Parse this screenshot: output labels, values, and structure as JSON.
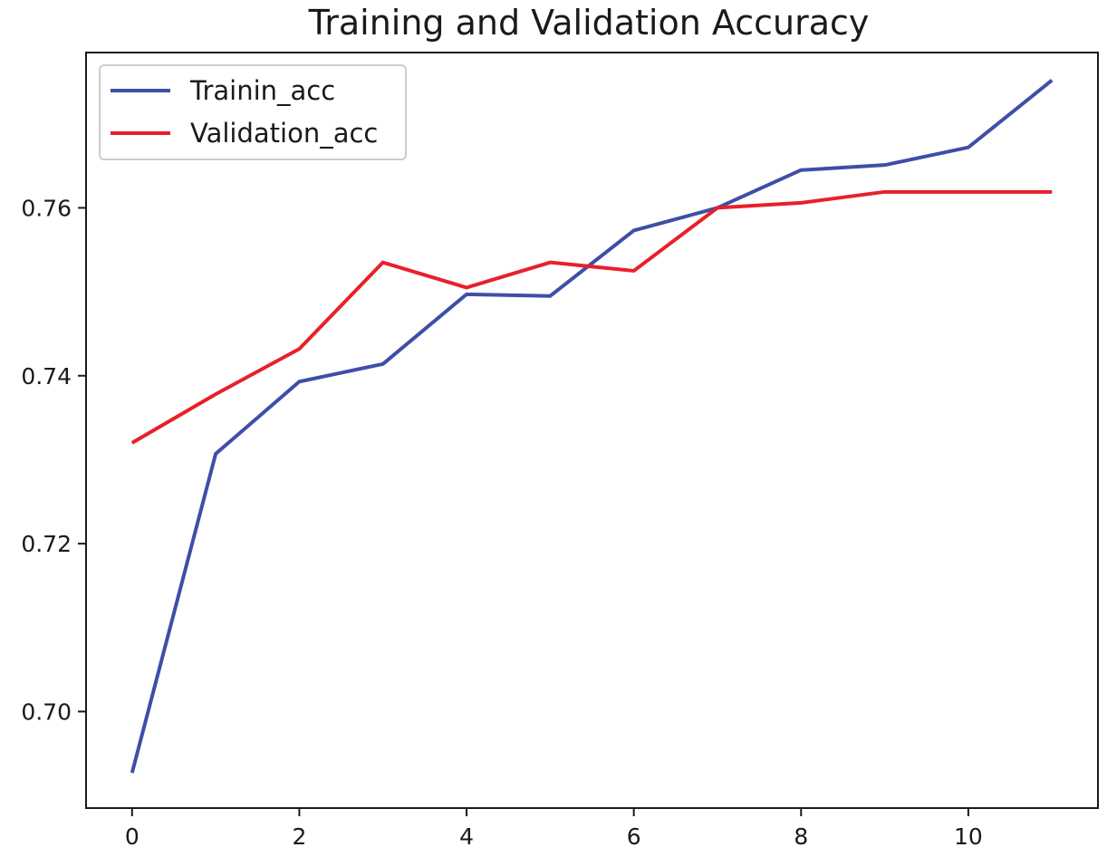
{
  "chart_data": {
    "type": "line",
    "title": "Training and Validation Accuracy",
    "xlabel": "",
    "ylabel": "",
    "x": [
      0,
      1,
      2,
      3,
      4,
      5,
      6,
      7,
      8,
      9,
      10,
      11
    ],
    "xlim": [
      -0.55,
      11.55
    ],
    "ylim": [
      0.6885,
      0.7785
    ],
    "xticks": [
      0,
      2,
      4,
      6,
      8,
      10
    ],
    "yticks": [
      0.7,
      0.72,
      0.74,
      0.76
    ],
    "xtick_labels": [
      "0",
      "2",
      "4",
      "6",
      "8",
      "10"
    ],
    "ytick_labels": [
      "0.70",
      "0.72",
      "0.74",
      "0.76"
    ],
    "grid": false,
    "legend_position": "upper-left",
    "series": [
      {
        "name": "Trainin_acc",
        "color": "#3f4ea8",
        "values": [
          0.6927,
          0.7307,
          0.7393,
          0.7414,
          0.7497,
          0.7495,
          0.7573,
          0.76,
          0.7645,
          0.7651,
          0.7672,
          0.7752
        ]
      },
      {
        "name": "Validation_acc",
        "color": "#e8202a",
        "values": [
          0.732,
          0.7378,
          0.7432,
          0.7535,
          0.7505,
          0.7535,
          0.7525,
          0.76,
          0.7606,
          0.7619,
          0.7619,
          0.7619
        ]
      }
    ]
  }
}
